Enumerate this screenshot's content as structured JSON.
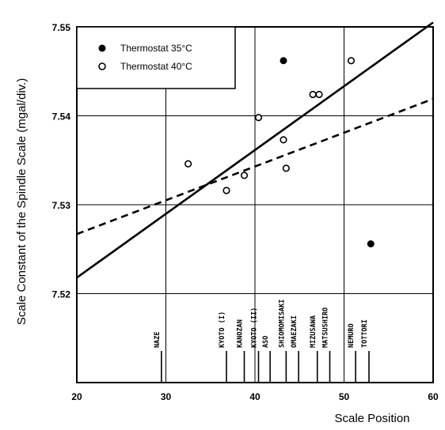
{
  "chart_data": {
    "type": "scatter",
    "xlabel": "Scale Position",
    "ylabel": "Scale Constant of the Spindle Scale (mgal/div.)",
    "xlim": [
      20,
      60
    ],
    "ylim": [
      7.51,
      7.55
    ],
    "x_ticks": [
      {
        "value": 20,
        "label": "20"
      },
      {
        "value": 30,
        "label": "30"
      },
      {
        "value": 40,
        "label": "40"
      },
      {
        "value": 50,
        "label": "50"
      },
      {
        "value": 60,
        "label": "60"
      }
    ],
    "y_ticks": [
      {
        "value": 7.52,
        "label": "7.52"
      },
      {
        "value": 7.53,
        "label": "7.53"
      },
      {
        "value": 7.54,
        "label": "7.54"
      },
      {
        "value": 7.55,
        "label": "7.55"
      }
    ],
    "grid": true,
    "legend_position": "top-left",
    "series": [
      {
        "name": "Thermostat 35°C",
        "marker": "filled-circle",
        "points": [
          {
            "x": 43.2,
            "y": 7.5462
          },
          {
            "x": 53.0,
            "y": 7.5256
          }
        ]
      },
      {
        "name": "Thermostat 40°C",
        "marker": "open-circle",
        "points": [
          {
            "x": 32.5,
            "y": 7.5346
          },
          {
            "x": 36.8,
            "y": 7.5316
          },
          {
            "x": 38.8,
            "y": 7.5333
          },
          {
            "x": 40.4,
            "y": 7.5398
          },
          {
            "x": 43.2,
            "y": 7.5373
          },
          {
            "x": 43.5,
            "y": 7.5341
          },
          {
            "x": 46.5,
            "y": 7.5424
          },
          {
            "x": 47.2,
            "y": 7.5424
          },
          {
            "x": 50.8,
            "y": 7.5462
          }
        ]
      }
    ],
    "lines": [
      {
        "style": "solid",
        "from": [
          20,
          7.5218
        ],
        "to": [
          60,
          7.5505
        ]
      },
      {
        "style": "dashed",
        "from": [
          20,
          7.5267
        ],
        "to": [
          60,
          7.5419
        ]
      }
    ],
    "stations": [
      {
        "label": "NAZE",
        "x": 29.5
      },
      {
        "label": "KYOTO (I)",
        "x": 36.8
      },
      {
        "label": "KANOZAN",
        "x": 38.8
      },
      {
        "label": "KYOTO (II)",
        "x": 40.4
      },
      {
        "label": "ASO",
        "x": 41.7
      },
      {
        "label": "SHIOMOMISAKI",
        "x": 43.5
      },
      {
        "label": "OMAEZAKI",
        "x": 44.9
      },
      {
        "label": "MIZUSAWA",
        "x": 47.0
      },
      {
        "label": "MATSUSHIRO",
        "x": 48.4
      },
      {
        "label": "NEMURO",
        "x": 51.3
      },
      {
        "label": "TOTTORI",
        "x": 52.8
      }
    ]
  }
}
